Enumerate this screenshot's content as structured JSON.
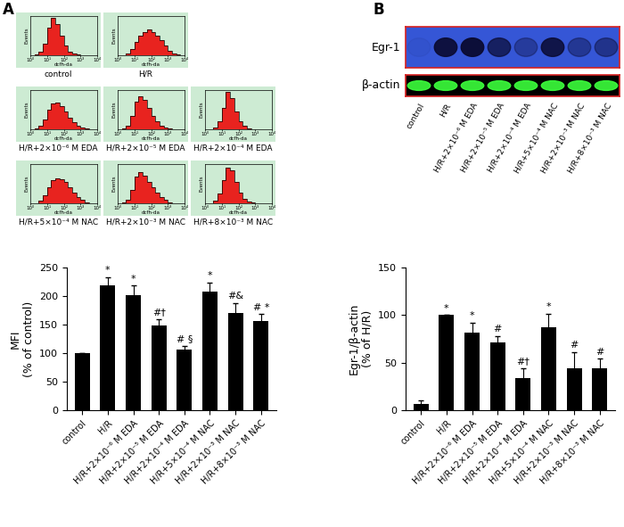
{
  "panel_labels": [
    "A",
    "B"
  ],
  "chart_data": [
    {
      "type": "histogram",
      "title": "control",
      "xlabel": "dcfh-da",
      "ylabel": "Events",
      "color": "#e8231f",
      "log": "x",
      "bins": [
        1,
        1.78,
        3.16,
        5.62,
        10,
        17.8,
        31.6,
        56.2,
        100,
        178,
        316,
        562,
        1000,
        1778,
        3162,
        5623,
        10000
      ],
      "counts": [
        0,
        2,
        8,
        30,
        70,
        95,
        80,
        50,
        25,
        10,
        4,
        2,
        1,
        0,
        0,
        0
      ],
      "xlim": [
        1,
        10000
      ],
      "xticks": [
        {
          "value": 1,
          "label": "10⁰"
        },
        {
          "value": 10,
          "label": "10¹"
        },
        {
          "value": 100,
          "label": "10²"
        },
        {
          "value": 1000,
          "label": "10³"
        },
        {
          "value": 10000,
          "label": "10⁴"
        }
      ],
      "ylim": [
        0,
        100
      ],
      "yticks": [],
      "tick_labels": "x"
    },
    {
      "type": "histogram",
      "title": "H/R",
      "xlabel": "dcfh-da",
      "ylabel": "Events",
      "color": "#e8231f",
      "log": "x",
      "bins": [
        1,
        1.78,
        3.16,
        5.62,
        10,
        17.8,
        31.6,
        56.2,
        100,
        178,
        316,
        562,
        1000,
        1778,
        3162,
        5623,
        10000
      ],
      "counts": [
        0,
        1,
        5,
        15,
        35,
        50,
        60,
        65,
        60,
        50,
        38,
        25,
        12,
        5,
        2,
        0
      ],
      "xlim": [
        1,
        10000
      ],
      "xticks": [
        {
          "value": 1,
          "label": "10⁰"
        },
        {
          "value": 10,
          "label": "10¹"
        },
        {
          "value": 100,
          "label": "10²"
        },
        {
          "value": 1000,
          "label": "10³"
        },
        {
          "value": 10000,
          "label": "10⁴"
        }
      ],
      "ylim": [
        0,
        100
      ],
      "yticks": [],
      "tick_labels": "x"
    },
    {
      "type": "histogram",
      "title": "H/R+2×10⁻⁶ M EDA",
      "xlabel": "dcfh-da",
      "ylabel": "Events",
      "color": "#e8231f",
      "log": "x",
      "bins": [
        1,
        1.78,
        3.16,
        5.62,
        10,
        17.8,
        31.6,
        56.2,
        100,
        178,
        316,
        562,
        1000,
        1778,
        3162,
        5623,
        10000
      ],
      "counts": [
        0,
        2,
        8,
        25,
        50,
        65,
        68,
        60,
        45,
        30,
        18,
        10,
        5,
        2,
        0,
        0
      ],
      "xlim": [
        1,
        10000
      ],
      "xticks": [
        {
          "value": 1,
          "label": "10⁰"
        },
        {
          "value": 10,
          "label": "10¹"
        },
        {
          "value": 100,
          "label": "10²"
        },
        {
          "value": 1000,
          "label": "10³"
        },
        {
          "value": 10000,
          "label": "10⁴"
        }
      ],
      "ylim": [
        0,
        100
      ],
      "yticks": [],
      "tick_labels": "x"
    },
    {
      "type": "histogram",
      "title": "H/R+2×10⁻⁵ M EDA",
      "xlabel": "dcfh-da",
      "ylabel": "Events",
      "color": "#e8231f",
      "log": "x",
      "bins": [
        1,
        1.78,
        3.16,
        5.62,
        10,
        17.8,
        31.6,
        56.2,
        100,
        178,
        316,
        562,
        1000,
        1778,
        3162,
        5623,
        10000
      ],
      "counts": [
        0,
        2,
        10,
        35,
        70,
        85,
        75,
        55,
        35,
        20,
        10,
        5,
        2,
        1,
        0,
        0
      ],
      "xlim": [
        1,
        10000
      ],
      "xticks": [
        {
          "value": 1,
          "label": "10⁰"
        },
        {
          "value": 10,
          "label": "10¹"
        },
        {
          "value": 100,
          "label": "10²"
        },
        {
          "value": 1000,
          "label": "10³"
        },
        {
          "value": 10000,
          "label": "10⁴"
        }
      ],
      "ylim": [
        0,
        100
      ],
      "yticks": [],
      "tick_labels": "x"
    },
    {
      "type": "histogram",
      "title": "H/R+2×10⁻⁴ M EDA",
      "xlabel": "dcfh-da",
      "ylabel": "Events",
      "color": "#e8231f",
      "log": "x",
      "bins": [
        1,
        1.78,
        3.16,
        5.62,
        10,
        17.8,
        31.6,
        56.2,
        100,
        178,
        316,
        562,
        1000,
        1778,
        3162,
        5623,
        10000
      ],
      "counts": [
        0,
        1,
        5,
        20,
        55,
        95,
        80,
        45,
        20,
        8,
        3,
        1,
        0,
        0,
        0,
        0
      ],
      "xlim": [
        1,
        10000
      ],
      "xticks": [
        {
          "value": 1,
          "label": "10⁰"
        },
        {
          "value": 10,
          "label": "10¹"
        },
        {
          "value": 100,
          "label": "10²"
        },
        {
          "value": 1000,
          "label": "10³"
        },
        {
          "value": 10000,
          "label": "10⁴"
        }
      ],
      "ylim": [
        0,
        100
      ],
      "yticks": [],
      "tick_labels": "x"
    },
    {
      "type": "histogram",
      "title": "H/R+5×10⁻⁴ M NAC",
      "xlabel": "dcfh-da",
      "ylabel": "Events",
      "color": "#e8231f",
      "log": "x",
      "bins": [
        1,
        1.78,
        3.16,
        5.62,
        10,
        17.8,
        31.6,
        56.2,
        100,
        178,
        316,
        562,
        1000,
        1778,
        3162,
        5623,
        10000
      ],
      "counts": [
        0,
        1,
        6,
        20,
        42,
        58,
        64,
        62,
        55,
        42,
        28,
        16,
        8,
        3,
        1,
        0
      ],
      "xlim": [
        1,
        10000
      ],
      "xticks": [
        {
          "value": 1,
          "label": "10⁰"
        },
        {
          "value": 10,
          "label": "10¹"
        },
        {
          "value": 100,
          "label": "10²"
        },
        {
          "value": 1000,
          "label": "10³"
        },
        {
          "value": 10000,
          "label": "10⁴"
        }
      ],
      "ylim": [
        0,
        100
      ],
      "yticks": [],
      "tick_labels": "x"
    },
    {
      "type": "histogram",
      "title": "H/R+2×10⁻³ M NAC",
      "xlabel": "dcfh-da",
      "ylabel": "Events",
      "color": "#e8231f",
      "log": "x",
      "bins": [
        1,
        1.78,
        3.16,
        5.62,
        10,
        17.8,
        31.6,
        56.2,
        100,
        178,
        316,
        562,
        1000,
        1778,
        3162,
        5623,
        10000
      ],
      "counts": [
        0,
        2,
        10,
        35,
        68,
        80,
        70,
        55,
        40,
        28,
        16,
        8,
        3,
        1,
        0,
        0
      ],
      "xlim": [
        1,
        10000
      ],
      "xticks": [
        {
          "value": 1,
          "label": "10⁰"
        },
        {
          "value": 10,
          "label": "10¹"
        },
        {
          "value": 100,
          "label": "10²"
        },
        {
          "value": 1000,
          "label": "10³"
        },
        {
          "value": 10000,
          "label": "10⁴"
        }
      ],
      "ylim": [
        0,
        100
      ],
      "yticks": [],
      "tick_labels": "x"
    },
    {
      "type": "histogram",
      "title": "H/R+8×10⁻³ M NAC",
      "xlabel": "dcfh-da",
      "ylabel": "Events",
      "color": "#e8231f",
      "log": "x",
      "bins": [
        1,
        1.78,
        3.16,
        5.62,
        10,
        17.8,
        31.6,
        56.2,
        100,
        178,
        316,
        562,
        1000,
        1778,
        3162,
        5623,
        10000
      ],
      "counts": [
        0,
        1,
        6,
        25,
        60,
        90,
        85,
        55,
        28,
        12,
        5,
        2,
        1,
        0,
        0,
        0
      ],
      "xlim": [
        1,
        10000
      ],
      "xticks": [
        {
          "value": 1,
          "label": "10⁰"
        },
        {
          "value": 10,
          "label": "10¹"
        },
        {
          "value": 100,
          "label": "10²"
        },
        {
          "value": 1000,
          "label": "10³"
        },
        {
          "value": 10000,
          "label": "10⁴"
        }
      ],
      "ylim": [
        0,
        100
      ],
      "yticks": [],
      "tick_labels": "x"
    },
    {
      "type": "bar",
      "ylabel": "MFI\n(% of control)",
      "color": "#000000",
      "categories": [
        "control",
        "H/R",
        "H/R+2×10⁻⁶ M EDA",
        "H/R+2×10⁻⁵ M EDA",
        "H/R+2×10⁻⁴ M EDA",
        "H/R+5×10⁻⁴ M NAC",
        "H/R+2×10⁻³ M NAC",
        "H/R+8×10⁻³ M NAC"
      ],
      "values": [
        100,
        218,
        201,
        148,
        106,
        208,
        170,
        156
      ],
      "errors": [
        0,
        15,
        17,
        12,
        7,
        16,
        18,
        12
      ],
      "annotations": [
        null,
        "*",
        "*",
        "#†",
        "# §",
        "*",
        "#&",
        "# *"
      ],
      "ylim": [
        0,
        250
      ],
      "yticks": [
        0,
        50,
        100,
        150,
        200,
        250
      ]
    },
    {
      "type": "bar",
      "ylabel": "Egr-1/β-actin\n(% of H/R)",
      "color": "#000000",
      "categories": [
        "control",
        "H/R",
        "H/R+2×10⁻⁶ M EDA",
        "H/R+2×10⁻⁵ M EDA",
        "H/R+2×10⁻⁴ M EDA",
        "H/R+5×10⁻⁴ M NAC",
        "H/R+2×10⁻³ M NAC",
        "H/R+8×10⁻³ M NAC"
      ],
      "values": [
        7,
        100,
        82,
        71,
        34,
        87,
        44,
        44
      ],
      "errors": [
        3,
        0,
        10,
        7,
        10,
        14,
        17,
        10
      ],
      "annotations": [
        null,
        "*",
        "*",
        "#",
        "#†",
        "*",
        "#",
        "#"
      ],
      "ylim": [
        0,
        150
      ],
      "yticks": [
        0,
        50,
        100,
        150
      ]
    }
  ],
  "blot": {
    "lanes": [
      "control",
      "H/R",
      "H/R+2×10⁻⁶ M EDA",
      "H/R+2×10⁻⁵ M EDA",
      "H/R+2×10⁻⁴ M EDA",
      "H/R+5×10⁻⁴ M NAC",
      "H/R+2×10⁻³ M NAC",
      "H/R+8×10⁻³ M NAC"
    ],
    "rows": [
      {
        "label": "Egr-1",
        "intensity": [
          0.05,
          0.9,
          0.95,
          0.7,
          0.35,
          0.85,
          0.4,
          0.45
        ]
      },
      {
        "label": "β-actin",
        "intensity": [
          0.9,
          0.9,
          0.9,
          0.9,
          0.9,
          0.9,
          0.9,
          0.9
        ]
      }
    ]
  }
}
